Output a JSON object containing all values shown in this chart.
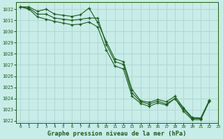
{
  "title": "Graphe pression niveau de la mer (hPa)",
  "background_color": "#c8ece8",
  "grid_color": "#b0d8d4",
  "line_color": "#1a5c1a",
  "xlim": [
    -0.5,
    23
  ],
  "ylim": [
    1021.8,
    1032.6
  ],
  "yticks": [
    1022,
    1023,
    1024,
    1025,
    1026,
    1027,
    1028,
    1029,
    1030,
    1031,
    1032
  ],
  "xticks": [
    0,
    1,
    2,
    3,
    4,
    5,
    6,
    7,
    8,
    9,
    10,
    11,
    12,
    13,
    14,
    15,
    16,
    17,
    18,
    19,
    20,
    21,
    22,
    23
  ],
  "series": [
    {
      "x": [
        0,
        1,
        2,
        3,
        4,
        5,
        6,
        7,
        8,
        9,
        10,
        11,
        12,
        13,
        14,
        15,
        16,
        17,
        18,
        19,
        20,
        21,
        22
      ],
      "y": [
        1032.2,
        1032.2,
        1031.8,
        1032.0,
        1031.55,
        1031.45,
        1031.35,
        1031.5,
        1032.1,
        1030.8,
        1029.1,
        1027.55,
        1027.3,
        1024.8,
        1023.8,
        1023.65,
        1023.9,
        1023.7,
        1024.2,
        1023.15,
        1022.3,
        1022.25,
        1023.85
      ]
    },
    {
      "x": [
        0,
        1,
        2,
        3,
        4,
        5,
        6,
        7,
        8,
        9,
        10,
        11,
        12,
        13,
        14,
        15,
        16,
        17,
        18,
        19,
        20,
        21,
        22
      ],
      "y": [
        1032.2,
        1032.1,
        1031.55,
        1031.55,
        1031.2,
        1031.1,
        1031.0,
        1031.1,
        1031.2,
        1031.2,
        1028.85,
        1027.3,
        1027.05,
        1024.5,
        1023.7,
        1023.5,
        1023.75,
        1023.5,
        1024.0,
        1023.05,
        1022.2,
        1022.2,
        1023.8
      ]
    },
    {
      "x": [
        0,
        1,
        2,
        3,
        4,
        5,
        6,
        7,
        8,
        9,
        10,
        11,
        12,
        13,
        14,
        15,
        16,
        17,
        18,
        19,
        20,
        21,
        22
      ],
      "y": [
        1032.2,
        1032.0,
        1031.3,
        1031.1,
        1030.9,
        1030.75,
        1030.6,
        1030.65,
        1030.85,
        1030.4,
        1028.35,
        1026.9,
        1026.65,
        1024.2,
        1023.55,
        1023.3,
        1023.6,
        1023.4,
        1024.0,
        1022.85,
        1022.1,
        1022.1,
        1023.75
      ]
    }
  ]
}
